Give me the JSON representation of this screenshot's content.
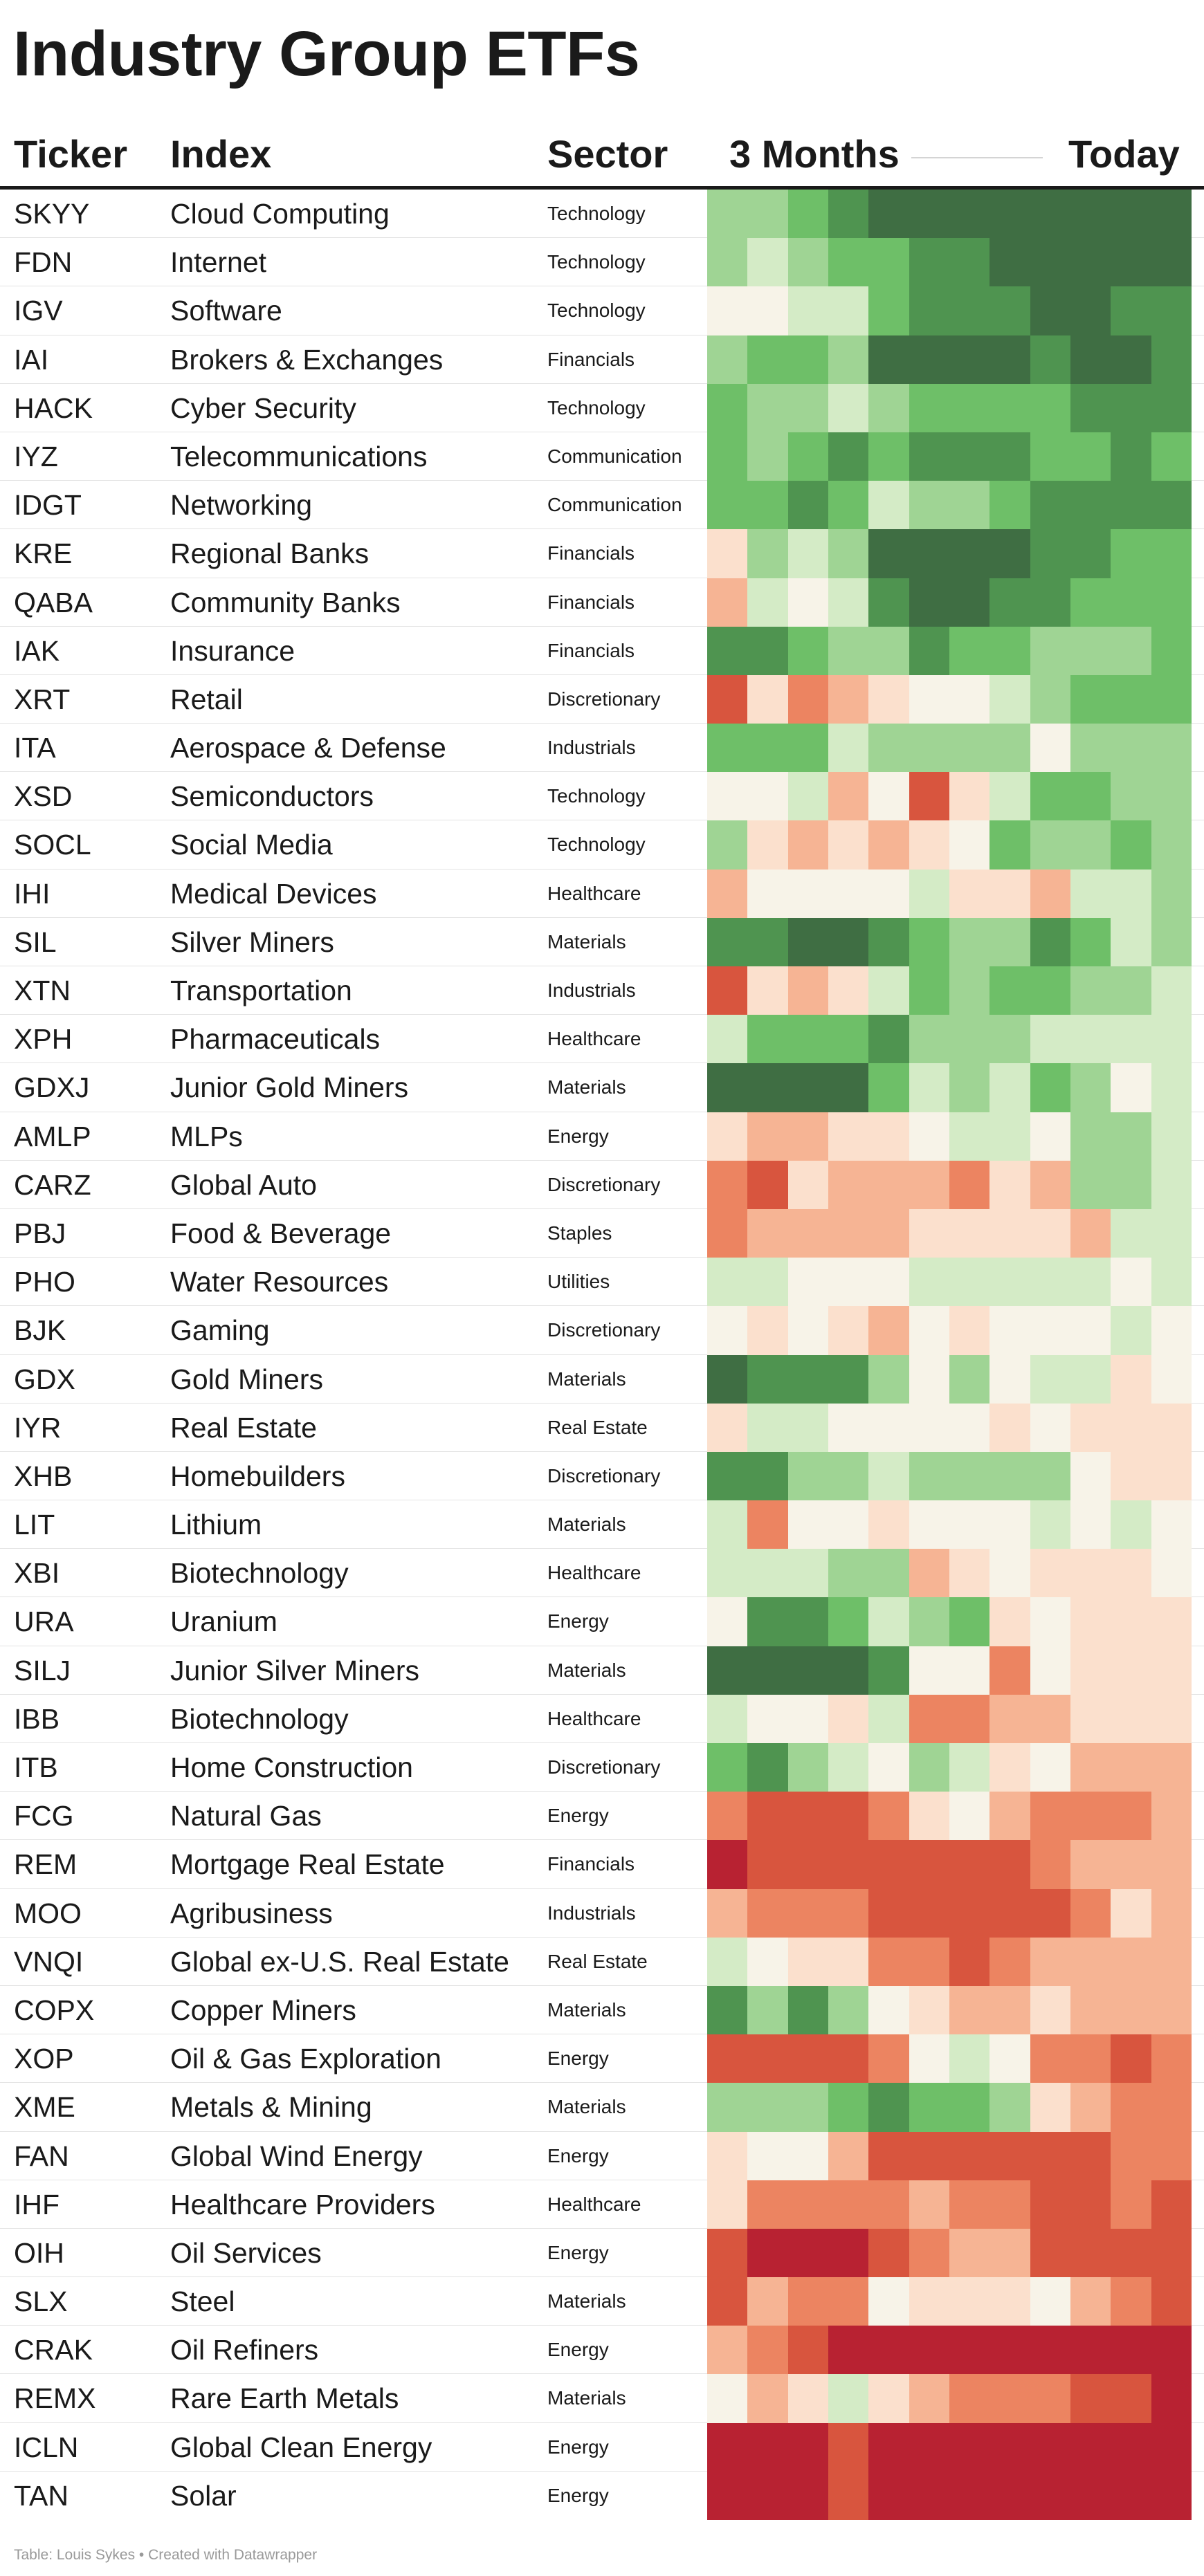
{
  "title": "Industry Group ETFs",
  "columns": {
    "ticker": "Ticker",
    "index": "Index",
    "sector": "Sector",
    "period_start": "3 Months",
    "period_end": "Today"
  },
  "palette": {
    "a": "#3f6e43",
    "b": "#4f9450",
    "c": "#6ebf68",
    "d": "#9fd494",
    "e": "#d4ebc6",
    "f": "#f7f3e8",
    "g": "#fbe0cd",
    "h": "#f6b494",
    "i": "#ec8461",
    "j": "#d8553e",
    "k": "#b82232"
  },
  "rows": [
    {
      "ticker": "SKYY",
      "index": "Cloud Computing",
      "sector": "Technology",
      "heat": "ddcbaaaaaaaa"
    },
    {
      "ticker": "FDN",
      "index": "Internet",
      "sector": "Technology",
      "heat": "dedccbbaaaaa"
    },
    {
      "ticker": "IGV",
      "index": "Software",
      "sector": "Technology",
      "heat": "ffeecbbbaabb"
    },
    {
      "ticker": "IAI",
      "index": "Brokers & Exchanges",
      "sector": "Financials",
      "heat": "dccdaaaabaab"
    },
    {
      "ticker": "HACK",
      "index": "Cyber Security",
      "sector": "Technology",
      "heat": "cddedccccbbb"
    },
    {
      "ticker": "IYZ",
      "index": "Telecommunications",
      "sector": "Communication",
      "heat": "cdcbcbbbccbc"
    },
    {
      "ticker": "IDGT",
      "index": "Networking",
      "sector": "Communication",
      "heat": "ccbceddcbbbb"
    },
    {
      "ticker": "KRE",
      "index": "Regional Banks",
      "sector": "Financials",
      "heat": "gdedaaaabbcc"
    },
    {
      "ticker": "QABA",
      "index": "Community Banks",
      "sector": "Financials",
      "heat": "hefebaabbccc"
    },
    {
      "ticker": "IAK",
      "index": "Insurance",
      "sector": "Financials",
      "heat": "bbcddbccdddc"
    },
    {
      "ticker": "XRT",
      "index": "Retail",
      "sector": "Discretionary",
      "heat": "jgihgffedccc"
    },
    {
      "ticker": "ITA",
      "index": "Aerospace & Defense",
      "sector": "Industrials",
      "heat": "ccceddddfddd"
    },
    {
      "ticker": "XSD",
      "index": "Semiconductors",
      "sector": "Technology",
      "heat": "ffehfjgeccdd"
    },
    {
      "ticker": "SOCL",
      "index": "Social Media",
      "sector": "Technology",
      "heat": "dghghgfcddcd"
    },
    {
      "ticker": "IHI",
      "index": "Medical Devices",
      "sector": "Healthcare",
      "heat": "hffffeggheed"
    },
    {
      "ticker": "SIL",
      "index": "Silver Miners",
      "sector": "Materials",
      "heat": "bbaabcddbced"
    },
    {
      "ticker": "XTN",
      "index": "Transportation",
      "sector": "Industrials",
      "heat": "jghgecdccdde"
    },
    {
      "ticker": "XPH",
      "index": "Pharmaceuticals",
      "sector": "Healthcare",
      "heat": "ecccbdddeeee"
    },
    {
      "ticker": "GDXJ",
      "index": "Junior Gold Miners",
      "sector": "Materials",
      "heat": "aaaacedecdfe"
    },
    {
      "ticker": "AMLP",
      "index": "MLPs",
      "sector": "Energy",
      "heat": "ghhggfeefdde"
    },
    {
      "ticker": "CARZ",
      "index": "Global Auto",
      "sector": "Discretionary",
      "heat": "ijghhhighdde"
    },
    {
      "ticker": "PBJ",
      "index": "Food & Beverage",
      "sector": "Staples",
      "heat": "ihhhhgggghee"
    },
    {
      "ticker": "PHO",
      "index": "Water Resources",
      "sector": "Utilities",
      "heat": "eefffeeeeefe"
    },
    {
      "ticker": "BJK",
      "index": "Gaming",
      "sector": "Discretionary",
      "heat": "fgfghfgfffef"
    },
    {
      "ticker": "GDX",
      "index": "Gold Miners",
      "sector": "Materials",
      "heat": "abbbdfdfeegf"
    },
    {
      "ticker": "IYR",
      "index": "Real Estate",
      "sector": "Real Estate",
      "heat": "geeffffgfggg"
    },
    {
      "ticker": "XHB",
      "index": "Homebuilders",
      "sector": "Discretionary",
      "heat": "bbddeddddfgg"
    },
    {
      "ticker": "LIT",
      "index": "Lithium",
      "sector": "Materials",
      "heat": "eiffgfffefef"
    },
    {
      "ticker": "XBI",
      "index": "Biotechnology",
      "sector": "Healthcare",
      "heat": "eeeddhgfgggf"
    },
    {
      "ticker": "URA",
      "index": "Uranium",
      "sector": "Energy",
      "heat": "fbbcedcgfggg"
    },
    {
      "ticker": "SILJ",
      "index": "Junior Silver Miners",
      "sector": "Materials",
      "heat": "aaaabffifggg"
    },
    {
      "ticker": "IBB",
      "index": "Biotechnology",
      "sector": "Healthcare",
      "heat": "effgeiihhggg"
    },
    {
      "ticker": "ITB",
      "index": "Home Construction",
      "sector": "Discretionary",
      "heat": "cbdefdegfhhh"
    },
    {
      "ticker": "FCG",
      "index": "Natural Gas",
      "sector": "Energy",
      "heat": "ijjjigfhiiih"
    },
    {
      "ticker": "REM",
      "index": "Mortgage Real Estate",
      "sector": "Financials",
      "heat": "kjjjjjjjihhh"
    },
    {
      "ticker": "MOO",
      "index": "Agribusiness",
      "sector": "Industrials",
      "heat": "hiiijjjjjigh"
    },
    {
      "ticker": "VNQI",
      "index": "Global ex-U.S. Real Estate",
      "sector": "Real Estate",
      "heat": "efggiijihhhh"
    },
    {
      "ticker": "COPX",
      "index": "Copper Miners",
      "sector": "Materials",
      "heat": "bdbdfghhghhh"
    },
    {
      "ticker": "XOP",
      "index": "Oil & Gas Exploration",
      "sector": "Energy",
      "heat": "jjjjifefiiji"
    },
    {
      "ticker": "XME",
      "index": "Metals & Mining",
      "sector": "Materials",
      "heat": "dddcbccdghii"
    },
    {
      "ticker": "FAN",
      "index": "Global Wind Energy",
      "sector": "Energy",
      "heat": "gffhjjjjjjii"
    },
    {
      "ticker": "IHF",
      "index": "Healthcare Providers",
      "sector": "Healthcare",
      "heat": "giiiihiijjij"
    },
    {
      "ticker": "OIH",
      "index": "Oil Services",
      "sector": "Energy",
      "heat": "jkkkjihhjjjj"
    },
    {
      "ticker": "SLX",
      "index": "Steel",
      "sector": "Materials",
      "heat": "jhiifgggfhij"
    },
    {
      "ticker": "CRAK",
      "index": "Oil Refiners",
      "sector": "Energy",
      "heat": "hijkkkkkkkkk"
    },
    {
      "ticker": "REMX",
      "index": "Rare Earth Metals",
      "sector": "Materials",
      "heat": "fhgeghiiijjk"
    },
    {
      "ticker": "ICLN",
      "index": "Global Clean Energy",
      "sector": "Energy",
      "heat": "kkkjkkkkkkkk"
    },
    {
      "ticker": "TAN",
      "index": "Solar",
      "sector": "Energy",
      "heat": "kkkjkkkkkkkk"
    }
  ],
  "footer": "Table: Louis Sykes • Created with Datawrapper"
}
